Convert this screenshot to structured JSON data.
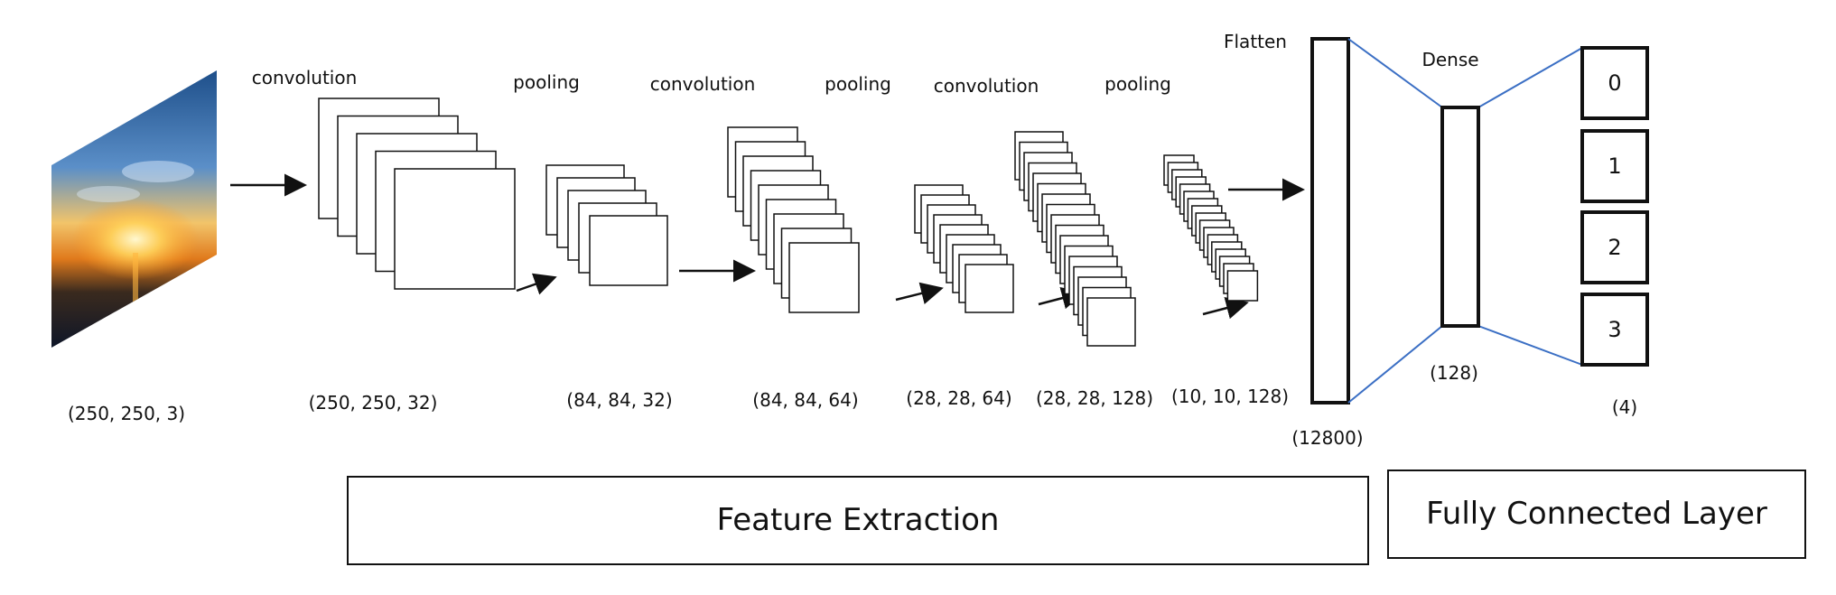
{
  "layers": [
    {
      "type": "input",
      "shape": "(250, 250, 3)"
    },
    {
      "type": "convolution",
      "label": "convolution",
      "shape": "(250, 250, 32)",
      "maps": 5
    },
    {
      "type": "pooling",
      "label": "pooling",
      "shape": "(84, 84, 32)",
      "maps": 5
    },
    {
      "type": "convolution",
      "label": "convolution",
      "shape": "(84, 84, 64)",
      "maps": 9
    },
    {
      "type": "pooling",
      "label": "pooling",
      "shape": "(28, 28, 64)",
      "maps": 9
    },
    {
      "type": "convolution",
      "label": "convolution",
      "shape": "(28, 28, 128)",
      "maps": 17
    },
    {
      "type": "pooling",
      "label": "pooling",
      "shape": "(10, 10, 128)",
      "maps": 17
    },
    {
      "type": "flatten",
      "label": "Flatten",
      "shape": "(12800)"
    },
    {
      "type": "dense",
      "label": "Dense",
      "shape": "(128)"
    },
    {
      "type": "output",
      "units": [
        "0",
        "1",
        "2",
        "3"
      ],
      "shape": "(4)"
    }
  ],
  "sections": {
    "feature_extraction": "Feature Extraction",
    "fully_connected": "Fully Connected Layer"
  },
  "colors": {
    "stroke": "#111111",
    "connector": "#3b6fc4"
  }
}
